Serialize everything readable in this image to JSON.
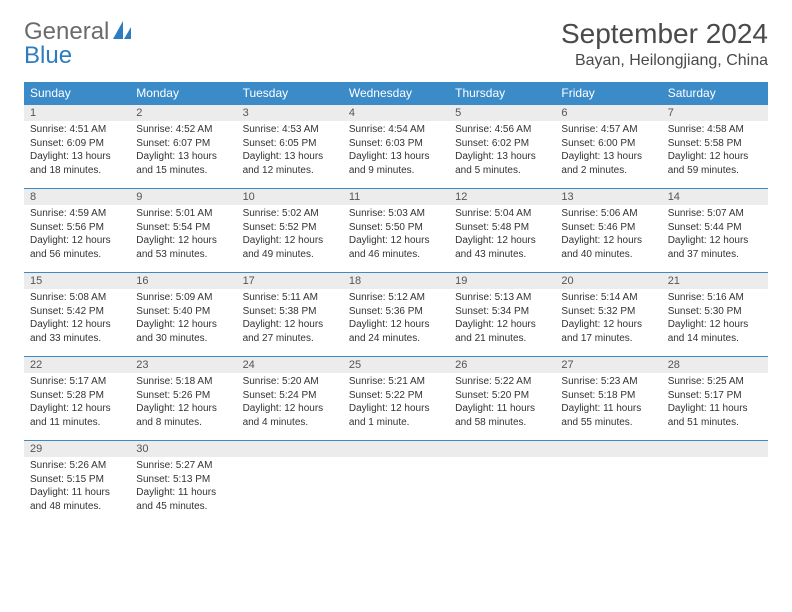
{
  "logo": {
    "general": "General",
    "blue": "Blue"
  },
  "title": "September 2024",
  "location": "Bayan, Heilongjiang, China",
  "colors": {
    "header_bg": "#3b8bc9",
    "header_text": "#ffffff",
    "band_bg": "#ececec",
    "accent": "#2f7bbf",
    "text": "#333333"
  },
  "dayNames": [
    "Sunday",
    "Monday",
    "Tuesday",
    "Wednesday",
    "Thursday",
    "Friday",
    "Saturday"
  ],
  "weeks": [
    [
      {
        "n": "1",
        "sr": "Sunrise: 4:51 AM",
        "ss": "Sunset: 6:09 PM",
        "dl": "Daylight: 13 hours and 18 minutes."
      },
      {
        "n": "2",
        "sr": "Sunrise: 4:52 AM",
        "ss": "Sunset: 6:07 PM",
        "dl": "Daylight: 13 hours and 15 minutes."
      },
      {
        "n": "3",
        "sr": "Sunrise: 4:53 AM",
        "ss": "Sunset: 6:05 PM",
        "dl": "Daylight: 13 hours and 12 minutes."
      },
      {
        "n": "4",
        "sr": "Sunrise: 4:54 AM",
        "ss": "Sunset: 6:03 PM",
        "dl": "Daylight: 13 hours and 9 minutes."
      },
      {
        "n": "5",
        "sr": "Sunrise: 4:56 AM",
        "ss": "Sunset: 6:02 PM",
        "dl": "Daylight: 13 hours and 5 minutes."
      },
      {
        "n": "6",
        "sr": "Sunrise: 4:57 AM",
        "ss": "Sunset: 6:00 PM",
        "dl": "Daylight: 13 hours and 2 minutes."
      },
      {
        "n": "7",
        "sr": "Sunrise: 4:58 AM",
        "ss": "Sunset: 5:58 PM",
        "dl": "Daylight: 12 hours and 59 minutes."
      }
    ],
    [
      {
        "n": "8",
        "sr": "Sunrise: 4:59 AM",
        "ss": "Sunset: 5:56 PM",
        "dl": "Daylight: 12 hours and 56 minutes."
      },
      {
        "n": "9",
        "sr": "Sunrise: 5:01 AM",
        "ss": "Sunset: 5:54 PM",
        "dl": "Daylight: 12 hours and 53 minutes."
      },
      {
        "n": "10",
        "sr": "Sunrise: 5:02 AM",
        "ss": "Sunset: 5:52 PM",
        "dl": "Daylight: 12 hours and 49 minutes."
      },
      {
        "n": "11",
        "sr": "Sunrise: 5:03 AM",
        "ss": "Sunset: 5:50 PM",
        "dl": "Daylight: 12 hours and 46 minutes."
      },
      {
        "n": "12",
        "sr": "Sunrise: 5:04 AM",
        "ss": "Sunset: 5:48 PM",
        "dl": "Daylight: 12 hours and 43 minutes."
      },
      {
        "n": "13",
        "sr": "Sunrise: 5:06 AM",
        "ss": "Sunset: 5:46 PM",
        "dl": "Daylight: 12 hours and 40 minutes."
      },
      {
        "n": "14",
        "sr": "Sunrise: 5:07 AM",
        "ss": "Sunset: 5:44 PM",
        "dl": "Daylight: 12 hours and 37 minutes."
      }
    ],
    [
      {
        "n": "15",
        "sr": "Sunrise: 5:08 AM",
        "ss": "Sunset: 5:42 PM",
        "dl": "Daylight: 12 hours and 33 minutes."
      },
      {
        "n": "16",
        "sr": "Sunrise: 5:09 AM",
        "ss": "Sunset: 5:40 PM",
        "dl": "Daylight: 12 hours and 30 minutes."
      },
      {
        "n": "17",
        "sr": "Sunrise: 5:11 AM",
        "ss": "Sunset: 5:38 PM",
        "dl": "Daylight: 12 hours and 27 minutes."
      },
      {
        "n": "18",
        "sr": "Sunrise: 5:12 AM",
        "ss": "Sunset: 5:36 PM",
        "dl": "Daylight: 12 hours and 24 minutes."
      },
      {
        "n": "19",
        "sr": "Sunrise: 5:13 AM",
        "ss": "Sunset: 5:34 PM",
        "dl": "Daylight: 12 hours and 21 minutes."
      },
      {
        "n": "20",
        "sr": "Sunrise: 5:14 AM",
        "ss": "Sunset: 5:32 PM",
        "dl": "Daylight: 12 hours and 17 minutes."
      },
      {
        "n": "21",
        "sr": "Sunrise: 5:16 AM",
        "ss": "Sunset: 5:30 PM",
        "dl": "Daylight: 12 hours and 14 minutes."
      }
    ],
    [
      {
        "n": "22",
        "sr": "Sunrise: 5:17 AM",
        "ss": "Sunset: 5:28 PM",
        "dl": "Daylight: 12 hours and 11 minutes."
      },
      {
        "n": "23",
        "sr": "Sunrise: 5:18 AM",
        "ss": "Sunset: 5:26 PM",
        "dl": "Daylight: 12 hours and 8 minutes."
      },
      {
        "n": "24",
        "sr": "Sunrise: 5:20 AM",
        "ss": "Sunset: 5:24 PM",
        "dl": "Daylight: 12 hours and 4 minutes."
      },
      {
        "n": "25",
        "sr": "Sunrise: 5:21 AM",
        "ss": "Sunset: 5:22 PM",
        "dl": "Daylight: 12 hours and 1 minute."
      },
      {
        "n": "26",
        "sr": "Sunrise: 5:22 AM",
        "ss": "Sunset: 5:20 PM",
        "dl": "Daylight: 11 hours and 58 minutes."
      },
      {
        "n": "27",
        "sr": "Sunrise: 5:23 AM",
        "ss": "Sunset: 5:18 PM",
        "dl": "Daylight: 11 hours and 55 minutes."
      },
      {
        "n": "28",
        "sr": "Sunrise: 5:25 AM",
        "ss": "Sunset: 5:17 PM",
        "dl": "Daylight: 11 hours and 51 minutes."
      }
    ],
    [
      {
        "n": "29",
        "sr": "Sunrise: 5:26 AM",
        "ss": "Sunset: 5:15 PM",
        "dl": "Daylight: 11 hours and 48 minutes."
      },
      {
        "n": "30",
        "sr": "Sunrise: 5:27 AM",
        "ss": "Sunset: 5:13 PM",
        "dl": "Daylight: 11 hours and 45 minutes."
      },
      null,
      null,
      null,
      null,
      null
    ]
  ]
}
